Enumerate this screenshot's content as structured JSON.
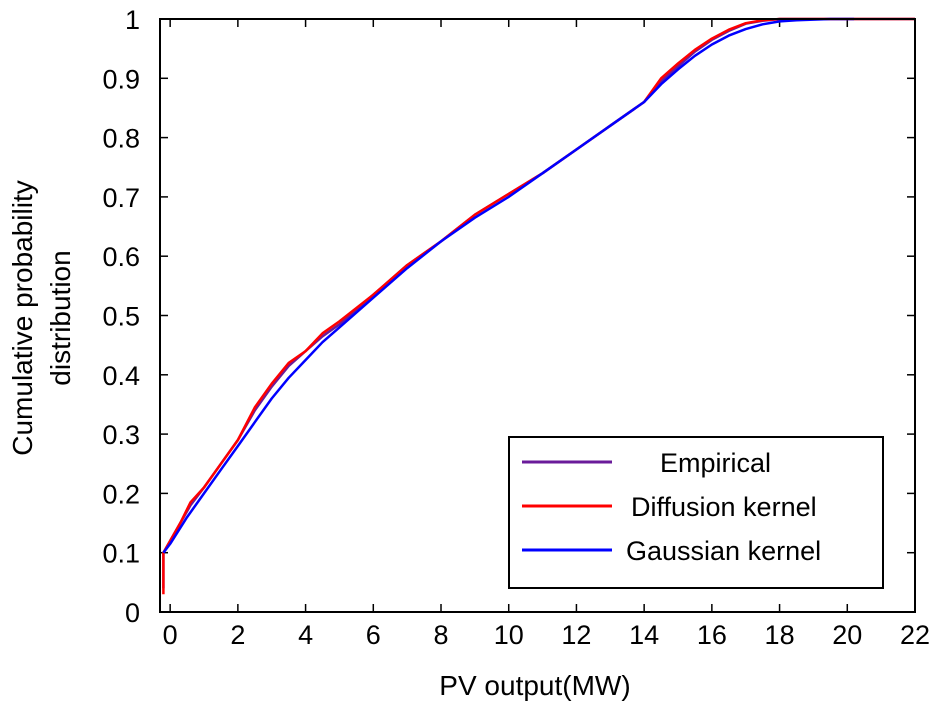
{
  "chart_data": {
    "type": "line",
    "title": "",
    "xlabel": "PV output(MW)",
    "ylabel": [
      "Cumulative probability",
      "distribution"
    ],
    "xlim": [
      -0.3,
      22
    ],
    "ylim": [
      0,
      1
    ],
    "xticks": [
      0,
      2,
      4,
      6,
      8,
      10,
      12,
      14,
      16,
      18,
      20,
      22
    ],
    "yticks": [
      0,
      0.1,
      0.2,
      0.3,
      0.4,
      0.5,
      0.6,
      0.7,
      0.8,
      0.9,
      1
    ],
    "grid": false,
    "legend_position": "bottom-right",
    "series": [
      {
        "name": "Empirical",
        "color": "#6a1b9a",
        "x": [
          -0.2,
          -0.2,
          0,
          0.3,
          0.6,
          1.0,
          1.5,
          2.0,
          2.5,
          3.0,
          3.5,
          4.0,
          4.5,
          5.0,
          6.0,
          7.0,
          8.0,
          9.0,
          10.0,
          11.0,
          12.0,
          13.0,
          14.0,
          14.5,
          15.0,
          15.5,
          16.0,
          16.5,
          17.0,
          17.5,
          18.0,
          18.5,
          19.0,
          20.0,
          22.0
        ],
        "y": [
          0.04,
          0.1,
          0.12,
          0.15,
          0.18,
          0.21,
          0.25,
          0.29,
          0.34,
          0.38,
          0.415,
          0.44,
          0.465,
          0.485,
          0.535,
          0.585,
          0.625,
          0.67,
          0.705,
          0.74,
          0.78,
          0.82,
          0.86,
          0.895,
          0.92,
          0.945,
          0.965,
          0.98,
          0.992,
          0.997,
          1.0,
          1.0,
          1.0,
          1.0,
          1.0
        ]
      },
      {
        "name": "Diffusion kernel",
        "color": "#ff0000",
        "x": [
          -0.2,
          -0.2,
          0,
          0.3,
          0.6,
          1.0,
          1.5,
          2.0,
          2.5,
          3.0,
          3.5,
          4.0,
          4.5,
          5.0,
          6.0,
          7.0,
          8.0,
          9.0,
          10.0,
          11.0,
          12.0,
          13.0,
          14.0,
          14.5,
          15.0,
          15.5,
          16.0,
          16.5,
          17.0,
          17.5,
          18.0,
          18.5,
          19.0,
          20.0,
          22.0
        ],
        "y": [
          0.03,
          0.1,
          0.12,
          0.15,
          0.185,
          0.21,
          0.25,
          0.29,
          0.345,
          0.385,
          0.42,
          0.44,
          0.47,
          0.49,
          0.535,
          0.585,
          0.625,
          0.67,
          0.705,
          0.74,
          0.78,
          0.82,
          0.86,
          0.9,
          0.925,
          0.948,
          0.967,
          0.982,
          0.993,
          0.998,
          1.0,
          1.0,
          1.0,
          1.0,
          1.0
        ]
      },
      {
        "name": "Gaussian kernel",
        "color": "#0000ff",
        "x": [
          -0.2,
          0,
          0.5,
          1.0,
          1.5,
          2.0,
          2.5,
          3.0,
          3.5,
          4.0,
          4.5,
          5.0,
          6.0,
          7.0,
          8.0,
          9.0,
          10.0,
          11.0,
          12.0,
          13.0,
          14.0,
          14.5,
          15.0,
          15.5,
          16.0,
          16.5,
          17.0,
          17.5,
          18.0,
          18.5,
          19.0,
          19.5,
          20.2
        ],
        "y": [
          0.1,
          0.115,
          0.16,
          0.2,
          0.24,
          0.28,
          0.32,
          0.36,
          0.395,
          0.425,
          0.455,
          0.48,
          0.53,
          0.58,
          0.625,
          0.665,
          0.7,
          0.74,
          0.78,
          0.82,
          0.86,
          0.89,
          0.915,
          0.938,
          0.957,
          0.972,
          0.983,
          0.991,
          0.996,
          0.998,
          0.999,
          1.0,
          1.0
        ]
      }
    ]
  }
}
